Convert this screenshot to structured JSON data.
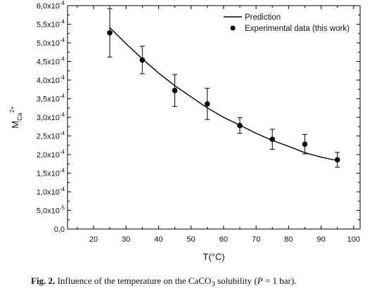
{
  "chart_data": {
    "type": "scatter",
    "xlabel": "T(°C)",
    "ylabel": "M",
    "ylabel_sub": "Ca",
    "ylabel_sup": "2+",
    "xlim": [
      12,
      102
    ],
    "ylim": [
      0,
      0.0006
    ],
    "x_ticks": [
      20,
      30,
      40,
      50,
      60,
      70,
      80,
      90,
      100
    ],
    "x_tick_labels": [
      "20",
      "30",
      "40",
      "50",
      "60",
      "70",
      "80",
      "90",
      "100"
    ],
    "y_ticks": [
      0,
      5e-05,
      0.0001,
      0.00015,
      0.0002,
      0.00025,
      0.0003,
      0.00035,
      0.0004,
      0.00045,
      0.0005,
      0.00055,
      0.0006
    ],
    "y_tick_labels": [
      {
        "mant": "0,0",
        "exp": ""
      },
      {
        "mant": "5,0x10",
        "exp": "-5"
      },
      {
        "mant": "1,0x10",
        "exp": "-4"
      },
      {
        "mant": "1,5x10",
        "exp": "-4"
      },
      {
        "mant": "2,0x10",
        "exp": "-4"
      },
      {
        "mant": "2,5x10",
        "exp": "-4"
      },
      {
        "mant": "3,0x10",
        "exp": "-4"
      },
      {
        "mant": "3,5x10",
        "exp": "-4"
      },
      {
        "mant": "4,0x10",
        "exp": "-4"
      },
      {
        "mant": "4,5x10",
        "exp": "-4"
      },
      {
        "mant": "5,0x10",
        "exp": "-4"
      },
      {
        "mant": "5,5x10",
        "exp": "-4"
      },
      {
        "mant": "6,0x10",
        "exp": "-4"
      }
    ],
    "series": [
      {
        "name": "Prediction",
        "kind": "line",
        "x": [
          25,
          30,
          35,
          40,
          45,
          50,
          55,
          60,
          65,
          70,
          75,
          80,
          85,
          90,
          95
        ],
        "y": [
          0.000541,
          0.000498,
          0.000457,
          0.000419,
          0.000385,
          0.000355,
          0.000325,
          0.0003,
          0.000279,
          0.000257,
          0.000238,
          0.000222,
          0.000205,
          0.000193,
          0.000184
        ]
      },
      {
        "name": "Experimental data (this work)",
        "kind": "scatter",
        "x": [
          25,
          35,
          45,
          55,
          65,
          75,
          85,
          95
        ],
        "y": [
          0.000527,
          0.000454,
          0.000372,
          0.000336,
          0.000278,
          0.000241,
          0.000228,
          0.000186
        ],
        "err": [
          6.5e-05,
          3.7e-05,
          4.3e-05,
          4.2e-05,
          2.1e-05,
          2.7e-05,
          2.6e-05,
          2e-05
        ]
      }
    ],
    "legend_position": "top-right",
    "grid": false,
    "colors": {
      "line": "#000000",
      "markers": "#000000"
    }
  },
  "caption": {
    "label": "Fig. 2.",
    "text_before": " Influence of the temperature on the CaCO",
    "subscript": "3",
    "text_after": " solubility (",
    "italic_var": "P",
    "text_end": " = 1 bar)."
  }
}
